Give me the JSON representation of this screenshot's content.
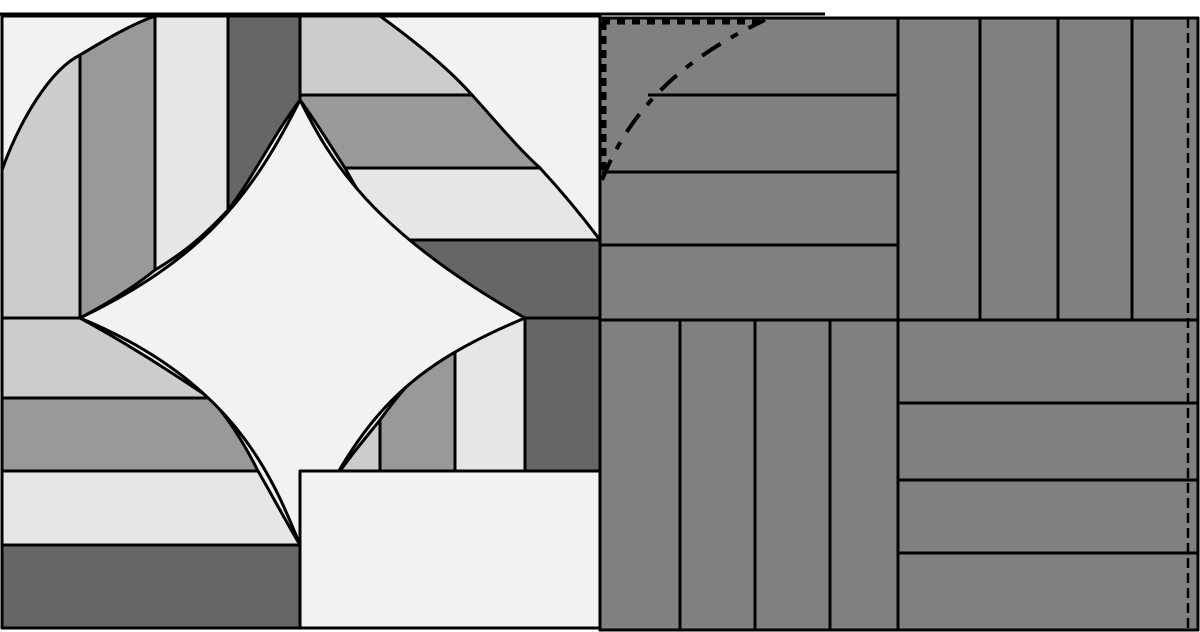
{
  "colors": {
    "background": "#ffffff",
    "light": "#f2f2f2",
    "strip_1": "#cccccc",
    "strip_2": "#999999",
    "strip_3": "#e6e6e6",
    "strip_4": "#666666",
    "right_block": "#808080",
    "outline": "#000000"
  }
}
